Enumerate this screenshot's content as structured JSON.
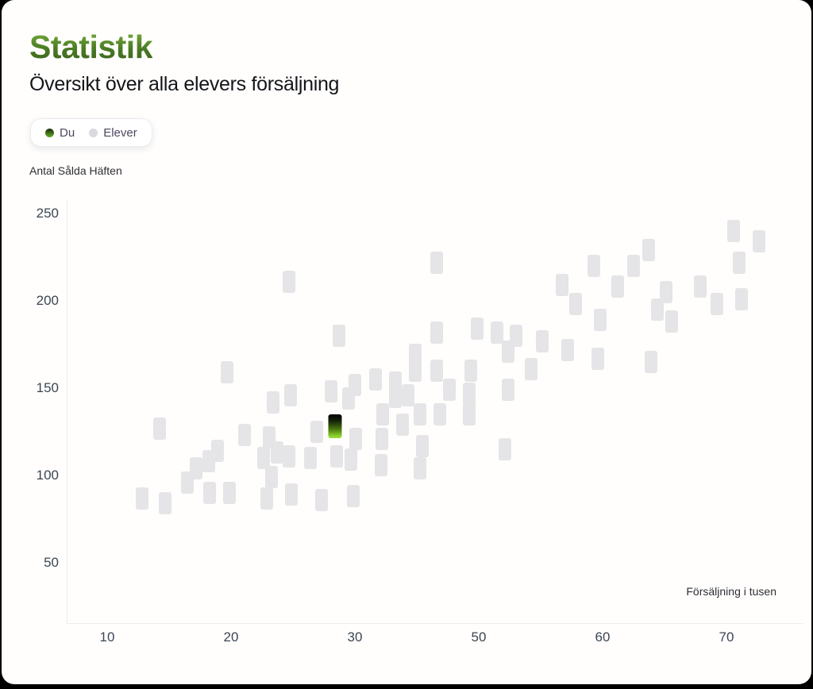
{
  "page": {
    "title": "Statistik",
    "subtitle": "Översikt över alla elevers försäljning"
  },
  "legend": {
    "items": [
      {
        "label": "Du",
        "type": "du"
      },
      {
        "label": "Elever",
        "type": "elever"
      }
    ]
  },
  "chart_data": {
    "type": "scatter",
    "title": "Översikt över alla elevers försäljning",
    "xlabel": "Försäljning i tusen",
    "ylabel": "Antal Sålda Häften",
    "x_ticks": [
      10,
      20,
      30,
      50,
      60,
      70
    ],
    "y_ticks": [
      250,
      200,
      150,
      100,
      50
    ],
    "series": [
      {
        "name": "Du",
        "points": [
          [
            28.4,
            128
          ]
        ]
      },
      {
        "name": "Elever",
        "points": [
          [
            70.6,
            240
          ],
          [
            72.6,
            234
          ],
          [
            63.7,
            229
          ],
          [
            71,
            222
          ],
          [
            59.3,
            220
          ],
          [
            62.5,
            220
          ],
          [
            43.2,
            222
          ],
          [
            24.7,
            211
          ],
          [
            61.2,
            208
          ],
          [
            67.9,
            208
          ],
          [
            65.1,
            205
          ],
          [
            71.2,
            201
          ],
          [
            69.2,
            198
          ],
          [
            64.4,
            195
          ],
          [
            56.7,
            209
          ],
          [
            57.8,
            198
          ],
          [
            65.6,
            188
          ],
          [
            59.8,
            189
          ],
          [
            28.7,
            180
          ],
          [
            43.2,
            182
          ],
          [
            49.7,
            184
          ],
          [
            51.5,
            182
          ],
          [
            53,
            180
          ],
          [
            52.4,
            171
          ],
          [
            55.1,
            177
          ],
          [
            57.2,
            172
          ],
          [
            39.7,
            169
          ],
          [
            39.7,
            160
          ],
          [
            59.6,
            167
          ],
          [
            63.9,
            165
          ],
          [
            19.7,
            159
          ],
          [
            43.2,
            160
          ],
          [
            48.7,
            160
          ],
          [
            54.2,
            161
          ],
          [
            33.3,
            155
          ],
          [
            36.5,
            153
          ],
          [
            30,
            152
          ],
          [
            45.3,
            149
          ],
          [
            28.1,
            148
          ],
          [
            23.4,
            142
          ],
          [
            24.8,
            146
          ],
          [
            29.5,
            144
          ],
          [
            38.6,
            146
          ],
          [
            48.5,
            147
          ],
          [
            48.5,
            135
          ],
          [
            36.5,
            145
          ],
          [
            40.5,
            135
          ],
          [
            43.7,
            135
          ],
          [
            34.5,
            135
          ],
          [
            37.7,
            129
          ],
          [
            52.4,
            149
          ],
          [
            52.1,
            115
          ],
          [
            14.2,
            127
          ],
          [
            21.1,
            123
          ],
          [
            23.1,
            122
          ],
          [
            26.9,
            125
          ],
          [
            30.1,
            121
          ],
          [
            34.4,
            121
          ],
          [
            40.9,
            117
          ],
          [
            34.2,
            106
          ],
          [
            40.5,
            104
          ],
          [
            29.7,
            109
          ],
          [
            28.5,
            111
          ],
          [
            18.9,
            114
          ],
          [
            18.2,
            108
          ],
          [
            17.2,
            104
          ],
          [
            16.5,
            96
          ],
          [
            18.3,
            90
          ],
          [
            19.9,
            90
          ],
          [
            22.9,
            87
          ],
          [
            24.9,
            89
          ],
          [
            23.3,
            99
          ],
          [
            23.7,
            113
          ],
          [
            22.6,
            110
          ],
          [
            26.4,
            110
          ],
          [
            27.3,
            86
          ],
          [
            29.9,
            88
          ],
          [
            12.8,
            87
          ],
          [
            14.7,
            84
          ],
          [
            24.7,
            111
          ]
        ]
      }
    ]
  },
  "colors": {
    "title_green_top": "#7cb23f",
    "title_green_bottom": "#3a5f1b",
    "du_gradient_top": "#000000",
    "du_gradient_bottom": "#8ed42e",
    "du_dot": "#4e8a1e",
    "elever_point": "#e5e4e6",
    "legend_text": "#4f4760",
    "tick_text": "#3e4551",
    "axis_line": "#ececec",
    "subtitle_text": "#15161a",
    "axis_title_text": "#2e2e33"
  }
}
